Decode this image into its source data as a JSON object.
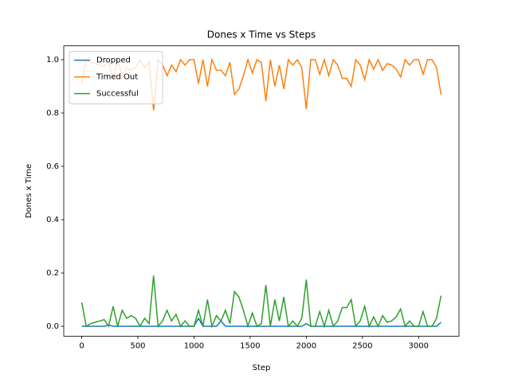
{
  "chart_data": {
    "type": "line",
    "title": "Dones x Time vs Steps",
    "xlabel": "Step",
    "ylabel": "Dones x Time",
    "x": [
      0,
      40,
      80,
      120,
      160,
      200,
      240,
      280,
      320,
      360,
      400,
      440,
      480,
      520,
      560,
      600,
      640,
      680,
      720,
      760,
      800,
      840,
      880,
      920,
      960,
      1000,
      1040,
      1080,
      1120,
      1160,
      1200,
      1240,
      1280,
      1320,
      1360,
      1400,
      1440,
      1480,
      1520,
      1560,
      1600,
      1640,
      1680,
      1720,
      1760,
      1800,
      1840,
      1880,
      1920,
      1960,
      2000,
      2040,
      2080,
      2120,
      2160,
      2200,
      2240,
      2280,
      2320,
      2360,
      2400,
      2440,
      2480,
      2520,
      2560,
      2600,
      2640,
      2680,
      2720,
      2760,
      2800,
      2840,
      2880,
      2920,
      2960,
      3000,
      3040,
      3080,
      3120,
      3160,
      3200
    ],
    "series": [
      {
        "name": "Dropped",
        "color": "#1f77b4",
        "values": [
          0,
          0,
          0,
          0,
          0,
          0,
          0.005,
          0,
          0,
          0,
          0,
          0,
          0,
          0,
          0,
          0,
          0,
          0,
          0,
          0,
          0,
          0,
          0,
          0,
          0,
          0,
          0.03,
          0,
          0,
          0,
          0,
          0.02,
          0,
          0,
          0,
          0,
          0,
          0,
          0,
          0,
          0,
          0,
          0,
          0,
          0,
          0,
          0,
          0,
          0,
          0,
          0.01,
          0,
          0,
          0,
          0,
          0,
          0,
          0,
          0,
          0,
          0,
          0,
          0,
          0,
          0,
          0,
          0,
          0,
          0,
          0,
          0,
          0,
          0,
          0,
          0,
          0,
          0,
          0,
          0,
          0,
          0.015
        ]
      },
      {
        "name": "Timed Out",
        "color": "#ff7f0e",
        "values": [
          0.91,
          1.0,
          0.99,
          0.985,
          0.98,
          0.975,
          0.995,
          0.925,
          1.0,
          0.94,
          0.97,
          0.96,
          0.97,
          1.0,
          0.97,
          0.99,
          0.81,
          1.0,
          0.98,
          0.94,
          0.98,
          0.955,
          1.0,
          0.98,
          1.0,
          1.0,
          0.91,
          1.0,
          0.9,
          1.0,
          0.96,
          0.96,
          0.94,
          0.99,
          0.87,
          0.89,
          0.94,
          1.0,
          0.95,
          1.0,
          0.99,
          0.845,
          1.0,
          0.9,
          0.98,
          0.89,
          1.0,
          0.98,
          1.0,
          0.97,
          0.815,
          1.0,
          1.0,
          0.945,
          1.0,
          0.94,
          1.0,
          0.98,
          0.93,
          0.93,
          0.9,
          1.0,
          0.98,
          0.925,
          1.0,
          0.965,
          1.0,
          0.96,
          0.985,
          0.98,
          0.965,
          0.935,
          1.0,
          0.98,
          1.0,
          1.0,
          0.945,
          1.0,
          1.0,
          0.97,
          0.87
        ]
      },
      {
        "name": "Successful",
        "color": "#2ca02c",
        "values": [
          0.09,
          0,
          0.01,
          0.015,
          0.02,
          0.025,
          0,
          0.075,
          0,
          0.06,
          0.03,
          0.04,
          0.03,
          0,
          0.03,
          0.01,
          0.19,
          0,
          0.02,
          0.06,
          0.02,
          0.045,
          0,
          0.02,
          0,
          0,
          0.06,
          0,
          0.1,
          0,
          0.04,
          0.02,
          0.06,
          0.01,
          0.13,
          0.11,
          0.06,
          0,
          0.05,
          0,
          0.01,
          0.155,
          0,
          0.1,
          0.02,
          0.11,
          0,
          0.02,
          0,
          0.03,
          0.175,
          0,
          0,
          0.055,
          0,
          0.06,
          0,
          0.02,
          0.07,
          0.07,
          0.1,
          0,
          0.02,
          0.075,
          0,
          0.035,
          0,
          0.04,
          0.015,
          0.02,
          0.035,
          0.065,
          0,
          0.02,
          0,
          0,
          0.055,
          0,
          0,
          0.03,
          0.115
        ]
      }
    ],
    "xlim": [
      -160,
      3360
    ],
    "ylim": [
      -0.037,
      1.052
    ],
    "xticks": [
      0,
      500,
      1000,
      1500,
      2000,
      2500,
      3000
    ],
    "yticks": [
      {
        "value": 0,
        "label": "0.0"
      },
      0.2,
      0.4,
      0.6,
      0.8,
      {
        "value": 1,
        "label": "1.0"
      }
    ],
    "legend": "upper left"
  }
}
